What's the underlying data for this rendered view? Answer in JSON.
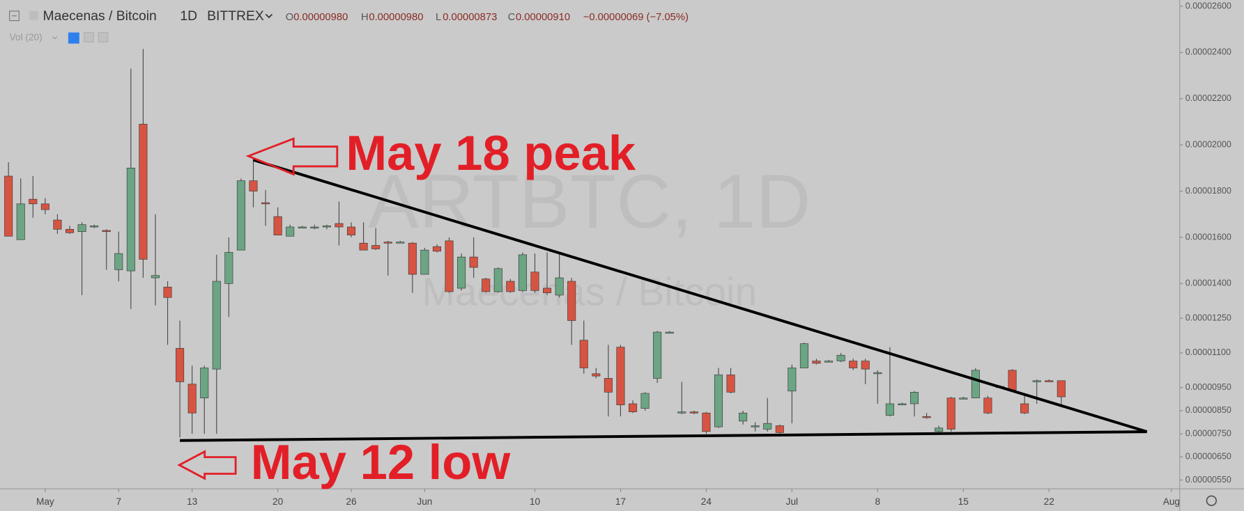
{
  "header": {
    "symbol": "Maecenas / Bitcoin",
    "interval": "1D",
    "exchange": "BITTREX",
    "open_label": "O",
    "open": "0.00000980",
    "high_label": "H",
    "high": "0.00000980",
    "low_label": "L",
    "low": "0.00000873",
    "close_label": "C",
    "close": "0.00000910",
    "change": "−0.00000069 (−7.05%)",
    "indicator": "Vol (20)"
  },
  "watermark": {
    "ticker": "ARTBTC, 1D",
    "name": "Maecenas / Bitcoin"
  },
  "chart_data": {
    "type": "candlestick",
    "annotations": [
      "May 18 peak",
      "May 12 low"
    ],
    "up_color": "#6ba583",
    "down_color": "#d75442",
    "x": [
      "Apr 28",
      "Apr 29",
      "Apr 30",
      "May 1",
      "May 2",
      "May 3",
      "May 4",
      "May 5",
      "May 6",
      "May 7",
      "May 8",
      "May 9",
      "May 10",
      "May 11",
      "May 12",
      "May 13",
      "May 14",
      "May 15",
      "May 16",
      "May 17",
      "May 18",
      "May 19",
      "May 20",
      "May 21",
      "May 22",
      "May 23",
      "May 24",
      "May 25",
      "May 26",
      "May 27",
      "May 28",
      "May 29",
      "May 30",
      "May 31",
      "Jun 1",
      "Jun 2",
      "Jun 3",
      "Jun 4",
      "Jun 5",
      "Jun 6",
      "Jun 7",
      "Jun 8",
      "Jun 9",
      "Jun 10",
      "Jun 11",
      "Jun 12",
      "Jun 13",
      "Jun 14",
      "Jun 15",
      "Jun 16",
      "Jun 17",
      "Jun 18",
      "Jun 19",
      "Jun 20",
      "Jun 21",
      "Jun 22",
      "Jun 23",
      "Jun 24",
      "Jun 25",
      "Jun 26",
      "Jun 27",
      "Jun 28",
      "Jun 29",
      "Jun 30",
      "Jul 1",
      "Jul 2",
      "Jul 3",
      "Jul 4",
      "Jul 5",
      "Jul 6",
      "Jul 7",
      "Jul 8",
      "Jul 9",
      "Jul 10",
      "Jul 11",
      "Jul 12",
      "Jul 13",
      "Jul 14",
      "Jul 15",
      "Jul 16",
      "Jul 17",
      "Jul 18",
      "Jul 19",
      "Jul 20",
      "Jul 21",
      "Jul 22",
      "Jul 23",
      "Jul 24",
      "Jul 25",
      "Jul 26",
      "Jul 27",
      "Jul 28",
      "Jul 29",
      "Jul 30",
      "Jul 31",
      "Aug 1"
    ],
    "open": [
      1.865e-05,
      1.59e-05,
      1.765e-05,
      1.745e-05,
      1.675e-05,
      1.635e-05,
      1.625e-05,
      1.645e-05,
      1.63e-05,
      1.46e-05,
      1.455e-05,
      2.09e-05,
      1.425e-05,
      1.385e-05,
      1.12e-05,
      9.65e-06,
      9.05e-06,
      1.03e-05,
      1.4e-05,
      1.545e-05,
      1.845e-05,
      1.75e-05,
      1.69e-05,
      1.605e-05,
      1.645e-05,
      1.64e-05,
      1.645e-05,
      1.66e-05,
      1.645e-05,
      1.575e-05,
      1.565e-05,
      1.58e-05,
      1.58e-05,
      1.575e-05,
      1.44e-05,
      1.56e-05,
      1.585e-05,
      1.38e-05,
      1.515e-05,
      1.42e-05,
      1.365e-05,
      1.41e-05,
      1.37e-05,
      1.45e-05,
      1.38e-05,
      1.35e-05,
      1.41e-05,
      1.155e-05,
      1.01e-05,
      9.9e-06,
      1.125e-05,
      8.8e-06,
      8.6e-06,
      9.9e-06,
      1.19e-05,
      8.45e-06,
      8.45e-06,
      8.4e-06,
      7.8e-06,
      1.005e-05,
      8.05e-06,
      7.85e-06,
      7.7e-06,
      7.85e-06,
      9.35e-06,
      1.035e-05,
      1.065e-05,
      1.065e-05,
      1.065e-05,
      1.065e-05,
      1.065e-05,
      1.015e-05,
      8.3e-06,
      8.8e-06,
      8.8e-06,
      8.25e-06,
      7.6e-06,
      9.05e-06,
      9.05e-06,
      9.05e-06,
      9.05e-06,
      9.55e-06,
      1.025e-05,
      8.8e-06,
      9.75e-06,
      9.8e-06,
      9.8e-06,
      null,
      null,
      null,
      null,
      null,
      null,
      null,
      null,
      null
    ],
    "high": [
      1.925e-05,
      1.855e-05,
      1.865e-05,
      1.77e-05,
      1.7e-05,
      1.65e-05,
      1.665e-05,
      1.655e-05,
      1.635e-05,
      1.625e-05,
      2.33e-05,
      2.415e-05,
      1.7e-05,
      1.41e-05,
      1.24e-05,
      1.045e-05,
      1.045e-05,
      1.525e-05,
      1.6e-05,
      1.855e-05,
      1.94e-05,
      1.805e-05,
      1.73e-05,
      1.655e-05,
      1.65e-05,
      1.655e-05,
      1.655e-05,
      1.755e-05,
      1.665e-05,
      1.665e-05,
      1.64e-05,
      1.585e-05,
      1.585e-05,
      1.58e-05,
      1.555e-05,
      1.57e-05,
      1.6e-05,
      1.53e-05,
      1.6e-05,
      1.425e-05,
      1.47e-05,
      1.42e-05,
      1.535e-05,
      1.53e-05,
      1.535e-05,
      1.53e-05,
      1.425e-05,
      1.24e-05,
      1.035e-05,
      1.135e-05,
      1.135e-05,
      8.95e-06,
      9.3e-06,
      1.195e-05,
      1.195e-05,
      9.75e-06,
      8.5e-06,
      8.45e-06,
      1.035e-05,
      1.035e-05,
      8.5e-06,
      8e-06,
      9.05e-06,
      7.9e-06,
      1.05e-05,
      1.145e-05,
      1.075e-05,
      1.07e-05,
      1.1e-05,
      1.075e-05,
      1.075e-05,
      1.025e-05,
      1.125e-05,
      8.85e-06,
      9.35e-06,
      8.4e-06,
      7.85e-06,
      9.1e-06,
      9.1e-06,
      1.035e-05,
      9.15e-06,
      9.6e-06,
      1.03e-05,
      9.15e-06,
      9.85e-06,
      9.85e-06,
      9.8e-06,
      null,
      null,
      null,
      null,
      null,
      null,
      null,
      null,
      null
    ],
    "low": [
      1.605e-05,
      1.59e-05,
      1.685e-05,
      1.7e-05,
      1.615e-05,
      1.615e-05,
      1.35e-05,
      1.64e-05,
      1.46e-05,
      1.41e-05,
      1.29e-05,
      1.425e-05,
      1.305e-05,
      1.135e-05,
      7.35e-06,
      7.5e-06,
      7.5e-06,
      7.5e-06,
      1.255e-05,
      1.545e-05,
      1.73e-05,
      1.65e-05,
      1.61e-05,
      1.605e-05,
      1.64e-05,
      1.635e-05,
      1.635e-05,
      1.565e-05,
      1.6e-05,
      1.545e-05,
      1.545e-05,
      1.435e-05,
      1.575e-05,
      1.36e-05,
      1.44e-05,
      1.535e-05,
      1.36e-05,
      1.37e-05,
      1.425e-05,
      1.36e-05,
      1.36e-05,
      1.36e-05,
      1.365e-05,
      1.36e-05,
      1.35e-05,
      1.34e-05,
      1.135e-05,
      1.01e-05,
      9.9e-06,
      8.25e-06,
      8.25e-06,
      8.4e-06,
      8.5e-06,
      9.7e-06,
      1.185e-05,
      8.35e-06,
      8.35e-06,
      7.5e-06,
      7.75e-06,
      9.25e-06,
      7.9e-06,
      7.6e-06,
      7.6e-06,
      7.5e-06,
      7.95e-06,
      1.035e-05,
      1.05e-05,
      1.06e-05,
      1.06e-05,
      1.025e-05,
      9.65e-06,
      8.8e-06,
      8.25e-06,
      8.75e-06,
      8.25e-06,
      8.15e-06,
      7.5e-06,
      7.6e-06,
      9e-06,
      9.05e-06,
      8.35e-06,
      9.5e-06,
      9.35e-06,
      8.35e-06,
      8.8e-06,
      9.75e-06,
      8.73e-06,
      null,
      null,
      null,
      null,
      null,
      null,
      null,
      null,
      null
    ],
    "close": [
      1.605e-05,
      1.745e-05,
      1.745e-05,
      1.72e-05,
      1.635e-05,
      1.62e-05,
      1.655e-05,
      1.65e-05,
      1.625e-05,
      1.53e-05,
      1.9e-05,
      1.505e-05,
      1.435e-05,
      1.34e-05,
      9.75e-06,
      8.4e-06,
      1.035e-05,
      1.41e-05,
      1.535e-05,
      1.845e-05,
      1.8e-05,
      1.745e-05,
      1.61e-05,
      1.645e-05,
      1.645e-05,
      1.645e-05,
      1.65e-05,
      1.645e-05,
      1.61e-05,
      1.545e-05,
      1.55e-05,
      1.575e-05,
      1.58e-05,
      1.44e-05,
      1.545e-05,
      1.54e-05,
      1.365e-05,
      1.515e-05,
      1.47e-05,
      1.365e-05,
      1.465e-05,
      1.365e-05,
      1.525e-05,
      1.37e-05,
      1.36e-05,
      1.425e-05,
      1.24e-05,
      1.035e-05,
      1e-05,
      9.3e-06,
      8.75e-06,
      8.45e-06,
      9.25e-06,
      1.19e-05,
      1.19e-05,
      8.45e-06,
      8.4e-06,
      7.6e-06,
      1.005e-05,
      9.3e-06,
      8.4e-06,
      7.85e-06,
      7.95e-06,
      7.55e-06,
      1.035e-05,
      1.14e-05,
      1.055e-05,
      1.065e-05,
      1.09e-05,
      1.035e-05,
      1.03e-05,
      1.015e-05,
      8.8e-06,
      8.8e-06,
      9.3e-06,
      8.2e-06,
      7.75e-06,
      7.7e-06,
      9.05e-06,
      1.025e-05,
      8.4e-06,
      9.55e-06,
      9.4e-06,
      8.4e-06,
      9.8e-06,
      9.79e-06,
      9.1e-06,
      null,
      null,
      null,
      null,
      null,
      null,
      null,
      null,
      null
    ],
    "trendlines": [
      {
        "from": {
          "x": "May 18",
          "y": 1.935e-05
        },
        "to": {
          "x": "Jul 30",
          "y": 7.59e-06
        }
      },
      {
        "from": {
          "x": "May 12",
          "y": 7.21e-06
        },
        "to": {
          "x": "Jul 30",
          "y": 7.59e-06
        }
      }
    ],
    "ylim": [
      5.12e-06,
      2.627e-05
    ],
    "yticks": [
      {
        "value": 2.6e-05,
        "label": "0.00002600"
      },
      {
        "value": 2.4e-05,
        "label": "0.00002400"
      },
      {
        "value": 2.2e-05,
        "label": "0.00002200"
      },
      {
        "value": 2e-05,
        "label": "0.00002000"
      },
      {
        "value": 1.8e-05,
        "label": "0.00001800"
      },
      {
        "value": 1.6e-05,
        "label": "0.00001600"
      },
      {
        "value": 1.4e-05,
        "label": "0.00001400"
      },
      {
        "value": 1.25e-05,
        "label": "0.00001250"
      },
      {
        "value": 1.1e-05,
        "label": "0.00001100"
      },
      {
        "value": 9.5e-06,
        "label": "0.00000950"
      },
      {
        "value": 8.5e-06,
        "label": "0.00000850"
      },
      {
        "value": 7.5e-06,
        "label": "0.00000750"
      },
      {
        "value": 6.5e-06,
        "label": "0.00000650"
      },
      {
        "value": 5.5e-06,
        "label": "0.00000550"
      }
    ],
    "xticks": [
      {
        "value": "May 1",
        "label": "May"
      },
      {
        "value": "May 7",
        "label": "7"
      },
      {
        "value": "May 13",
        "label": "13"
      },
      {
        "value": "May 20",
        "label": "20"
      },
      {
        "value": "May 26",
        "label": "26"
      },
      {
        "value": "Jun 1",
        "label": "Jun"
      },
      {
        "value": "Jun 10",
        "label": "10"
      },
      {
        "value": "Jun 17",
        "label": "17"
      },
      {
        "value": "Jun 24",
        "label": "24"
      },
      {
        "value": "Jul 1",
        "label": "Jul"
      },
      {
        "value": "Jul 8",
        "label": "8"
      },
      {
        "value": "Jul 15",
        "label": "15"
      },
      {
        "value": "Jul 22",
        "label": "22"
      },
      {
        "value": "Aug 1",
        "label": "Aug"
      }
    ]
  }
}
